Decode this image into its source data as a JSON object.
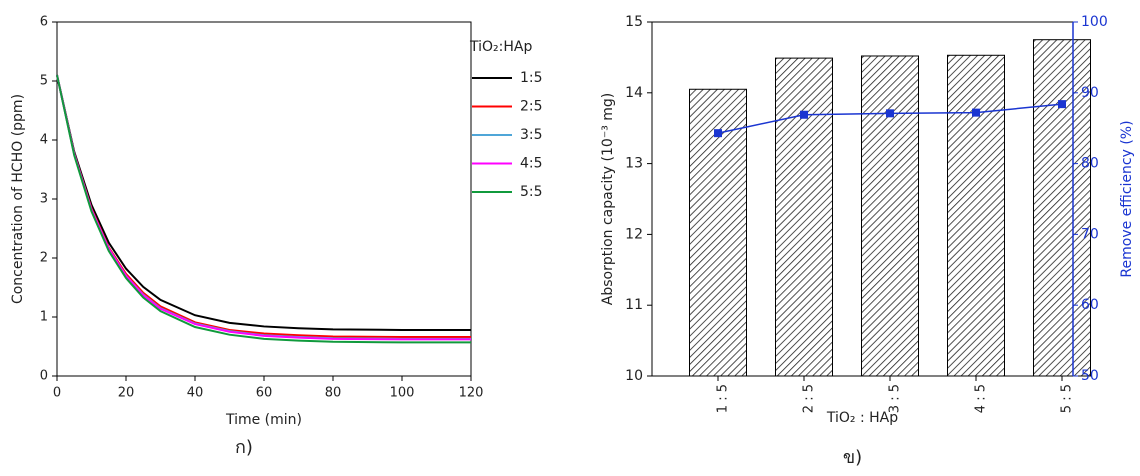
{
  "chart_data": [
    {
      "type": "line",
      "x": [
        0,
        5,
        10,
        15,
        20,
        25,
        30,
        40,
        50,
        60,
        70,
        80,
        100,
        120
      ],
      "series": [
        {
          "name": "1:5",
          "color": "#000000",
          "values": [
            5.1,
            3.8,
            2.9,
            2.26,
            1.82,
            1.51,
            1.29,
            1.03,
            0.9,
            0.84,
            0.81,
            0.79,
            0.78,
            0.78
          ]
        },
        {
          "name": "2:5",
          "color": "#ff0000",
          "values": [
            5.1,
            3.77,
            2.84,
            2.18,
            1.73,
            1.41,
            1.18,
            0.91,
            0.78,
            0.72,
            0.69,
            0.67,
            0.66,
            0.66
          ]
        },
        {
          "name": "3:5",
          "color": "#4fa6d8",
          "values": [
            5.1,
            3.76,
            2.82,
            2.16,
            1.7,
            1.38,
            1.15,
            0.89,
            0.76,
            0.69,
            0.66,
            0.64,
            0.63,
            0.63
          ]
        },
        {
          "name": "4:5",
          "color": "#ff00ff",
          "values": [
            5.1,
            3.76,
            2.82,
            2.16,
            1.7,
            1.37,
            1.14,
            0.88,
            0.75,
            0.68,
            0.65,
            0.63,
            0.62,
            0.62
          ]
        },
        {
          "name": "5:5",
          "color": "#109a3c",
          "values": [
            5.1,
            3.74,
            2.79,
            2.12,
            1.66,
            1.33,
            1.1,
            0.83,
            0.7,
            0.63,
            0.6,
            0.58,
            0.57,
            0.57
          ]
        }
      ],
      "xlim": [
        0,
        120
      ],
      "ylim": [
        0,
        6
      ],
      "xticks": [
        0,
        20,
        40,
        60,
        80,
        100,
        120
      ],
      "yticks": [
        0,
        1,
        2,
        3,
        4,
        5,
        6
      ],
      "xlabel": "Time (min)",
      "ylabel": "Concentration of HCHO (ppm)",
      "legend_title": "TiO₂:HAp",
      "caption": "ก)"
    },
    {
      "type": "bar",
      "categories": [
        "1 : 5",
        "2 : 5",
        "3 : 5",
        "4 : 5",
        "5 : 5"
      ],
      "series": [
        {
          "color": "#000000",
          "values": [
            14.05,
            14.49,
            14.52,
            14.53,
            14.75
          ]
        },
        {
          "type": "line",
          "axis": "y2",
          "color": "#1a35d1",
          "values": [
            84.3,
            86.9,
            87.1,
            87.2,
            88.4
          ]
        }
      ],
      "ylim": [
        10,
        15
      ],
      "yticks": [
        10,
        11,
        12,
        13,
        14,
        15
      ],
      "y2lim": [
        50,
        100
      ],
      "y2ticks": [
        50,
        60,
        70,
        80,
        90,
        100
      ],
      "xlabel": "TiO₂ : HAp",
      "ylabel": "Absorption capacity (10⁻³ mg)",
      "y2label": "Remove efficiency (%)",
      "caption": "ข)"
    }
  ]
}
